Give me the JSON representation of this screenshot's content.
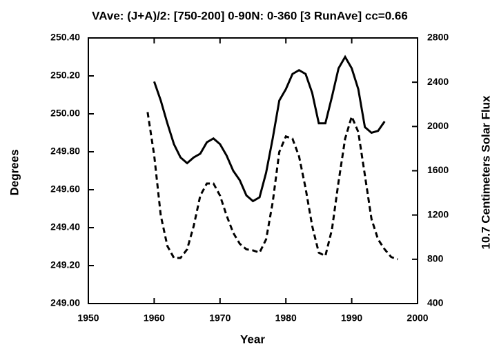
{
  "chart_data": {
    "type": "line",
    "title": "VAve: (J+A)/2: [750-200] 0-90N: 0-360 [3 RunAve] cc=0.66",
    "x_label": "Year",
    "y_label": "Degrees",
    "y2_label": "10.7 Centimeters Solar Flux",
    "x": [
      1959,
      1960,
      1961,
      1962,
      1963,
      1964,
      1965,
      1966,
      1967,
      1968,
      1969,
      1970,
      1971,
      1972,
      1973,
      1974,
      1975,
      1976,
      1977,
      1978,
      1979,
      1980,
      1981,
      1982,
      1983,
      1984,
      1985,
      1986,
      1987,
      1988,
      1989,
      1990,
      1991,
      1992,
      1993,
      1994,
      1995,
      1996,
      1997
    ],
    "series": [
      {
        "color": "#000000",
        "linestyle": "solid",
        "values": [
          null,
          250.17,
          250.07,
          249.95,
          249.84,
          249.77,
          249.74,
          249.77,
          249.79,
          249.85,
          249.87,
          249.84,
          249.78,
          249.7,
          249.65,
          249.57,
          249.54,
          249.56,
          249.69,
          249.87,
          250.07,
          250.13,
          250.21,
          250.23,
          250.21,
          250.11,
          249.95,
          249.95,
          250.09,
          250.24,
          250.3,
          250.24,
          250.13,
          249.93,
          249.9,
          249.91,
          249.96,
          null,
          null
        ]
      },
      {
        "color": "#000000",
        "linestyle": "dashed",
        "axis": "y2",
        "values": [
          2130,
          1740,
          1195,
          920,
          812,
          812,
          890,
          1100,
          1375,
          1485,
          1485,
          1375,
          1195,
          1040,
          940,
          890,
          880,
          860,
          980,
          1315,
          1770,
          1910,
          1890,
          1730,
          1440,
          1100,
          860,
          830,
          1070,
          1500,
          1890,
          2090,
          1950,
          1560,
          1165,
          980,
          890,
          820,
          800
        ]
      }
    ],
    "xlim": [
      1950,
      2000
    ],
    "xticks": [
      1950,
      1960,
      1970,
      1980,
      1990,
      2000
    ],
    "ylim": [
      249.0,
      250.4
    ],
    "yticks": [
      {
        "value": 249.0,
        "label": "249.00"
      },
      {
        "value": 249.2,
        "label": "249.20"
      },
      {
        "value": 249.4,
        "label": "249.40"
      },
      {
        "value": 249.6,
        "label": "249.60"
      },
      {
        "value": 249.8,
        "label": "249.80"
      },
      {
        "value": 250.0,
        "label": "250.00"
      },
      {
        "value": 250.2,
        "label": "250.20"
      },
      {
        "value": 250.4,
        "label": "250.40"
      }
    ],
    "y2lim": [
      400,
      2800
    ],
    "y2ticks": [
      400,
      800,
      1200,
      1600,
      2000,
      2400,
      2800
    ]
  }
}
